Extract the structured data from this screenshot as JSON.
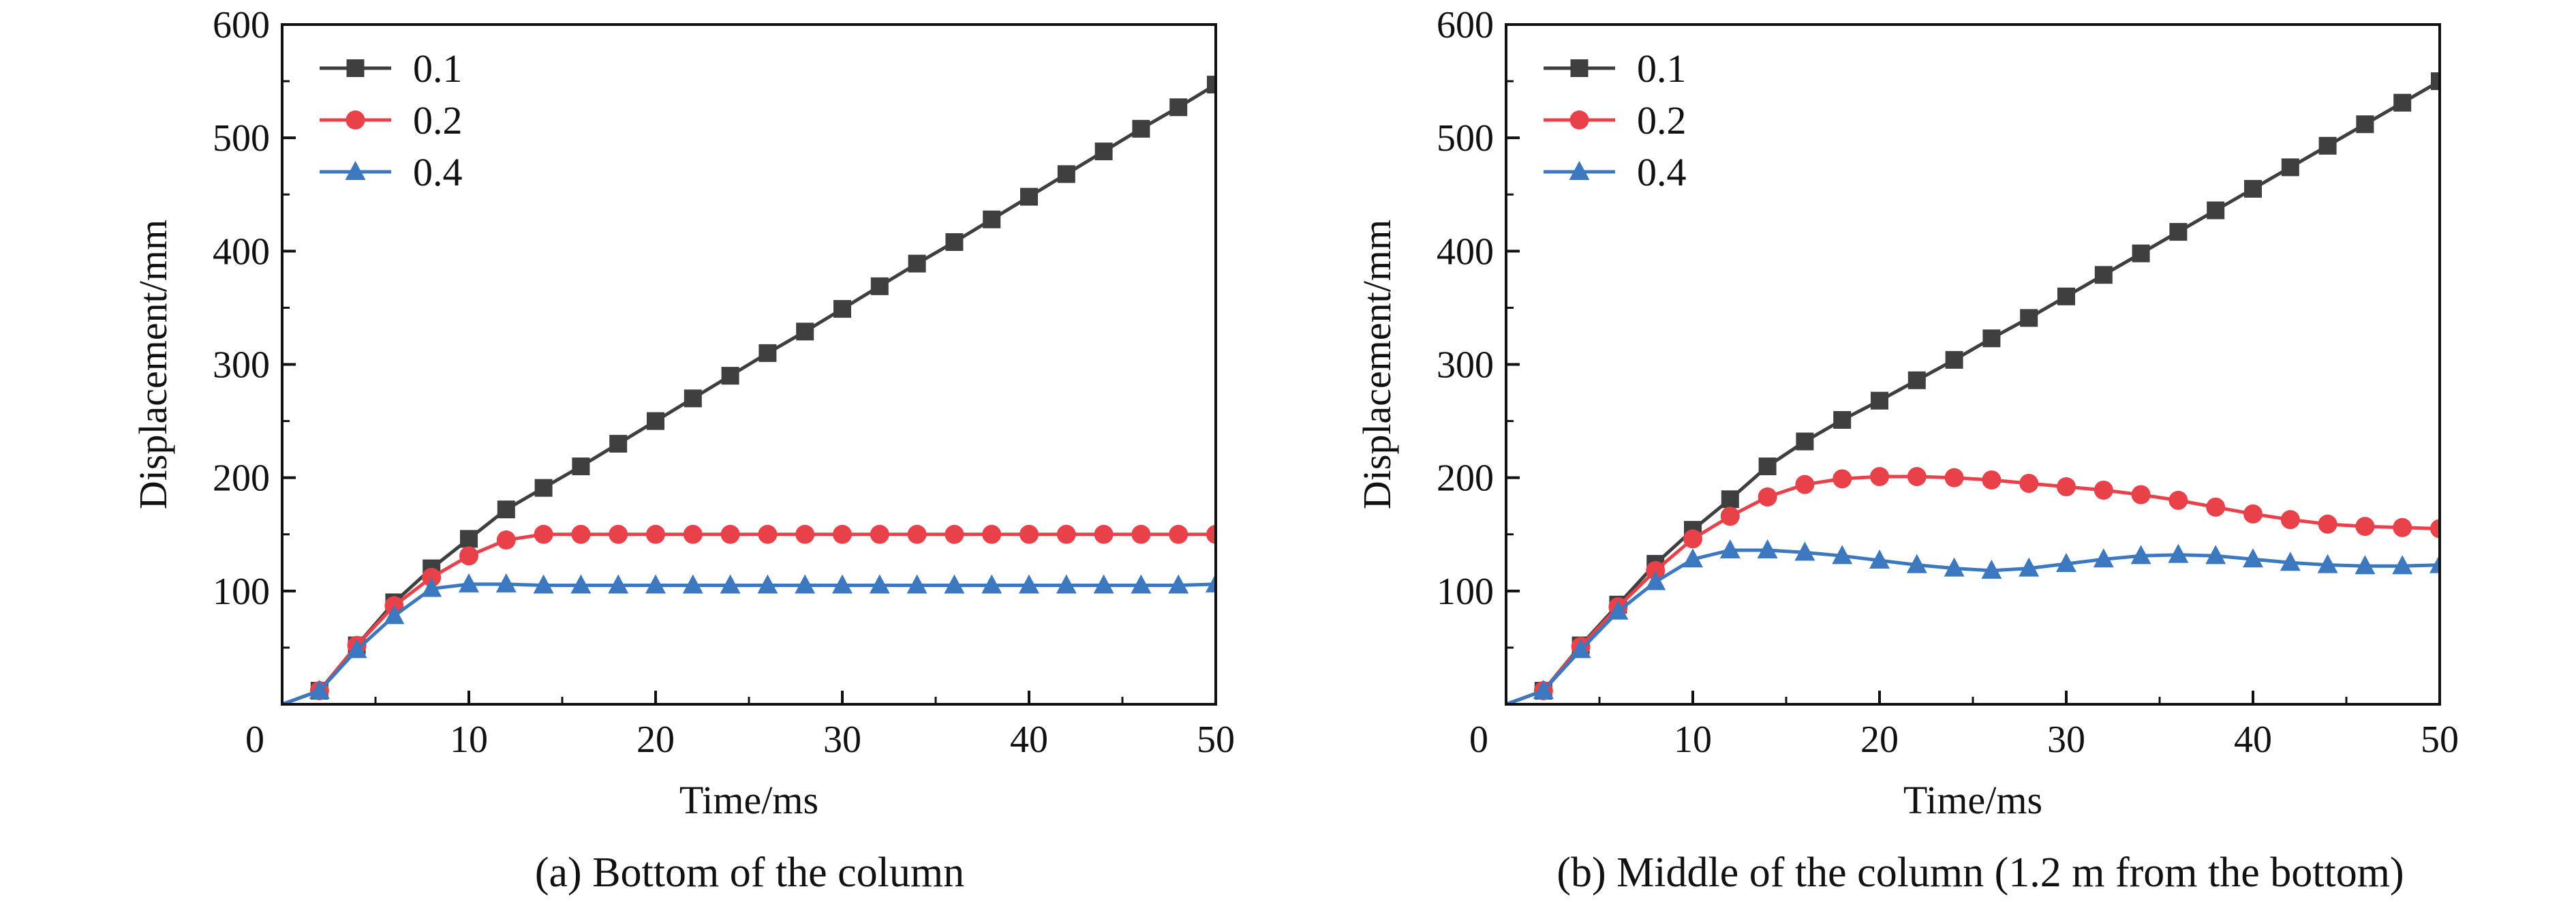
{
  "colors": {
    "series_0_1": "#3f3f3f",
    "series_0_2": "#e8414a",
    "series_0_4": "#3b78c0",
    "axis": "#111111"
  },
  "chart_data": [
    {
      "type": "line",
      "caption": "(a) Bottom of the column",
      "xlabel": "Time/ms",
      "ylabel": "Displacement/mm",
      "xlim": [
        0,
        50
      ],
      "ylim": [
        0,
        600
      ],
      "xticks": [
        0,
        10,
        20,
        30,
        40,
        50
      ],
      "yticks": [
        100,
        200,
        300,
        400,
        500,
        600
      ],
      "grid": false,
      "legend_position": "top-left",
      "x": [
        0,
        2,
        4,
        6,
        8,
        10,
        12,
        14,
        16,
        18,
        20,
        22,
        24,
        26,
        28,
        30,
        32,
        34,
        36,
        38,
        40,
        42,
        44,
        46,
        48,
        50
      ],
      "series": [
        {
          "name": "0.1",
          "marker": "square",
          "color": "#3f3f3f",
          "values": [
            0,
            12,
            52,
            90,
            120,
            146,
            172,
            191,
            210,
            230,
            250,
            270,
            290,
            310,
            329,
            349,
            369,
            389,
            408,
            428,
            448,
            468,
            488,
            508,
            527,
            547
          ]
        },
        {
          "name": "0.2",
          "marker": "circle",
          "color": "#e8414a",
          "values": [
            0,
            12,
            52,
            87,
            112,
            131,
            145,
            150,
            150,
            150,
            150,
            150,
            150,
            150,
            150,
            150,
            150,
            150,
            150,
            150,
            150,
            150,
            150,
            150,
            150,
            150
          ]
        },
        {
          "name": "0.4",
          "marker": "triangle",
          "color": "#3b78c0",
          "values": [
            0,
            12,
            48,
            78,
            102,
            106,
            106,
            105,
            105,
            105,
            105,
            105,
            105,
            105,
            105,
            105,
            105,
            105,
            105,
            105,
            105,
            105,
            105,
            105,
            105,
            106
          ]
        }
      ]
    },
    {
      "type": "line",
      "caption": "(b) Middle of the column (1.2 m from the bottom)",
      "xlabel": "Time/ms",
      "ylabel": "Displacement/mm",
      "xlim": [
        0,
        50
      ],
      "ylim": [
        0,
        600
      ],
      "xticks": [
        0,
        10,
        20,
        30,
        40,
        50
      ],
      "yticks": [
        100,
        200,
        300,
        400,
        500,
        600
      ],
      "grid": false,
      "legend_position": "top-left",
      "x": [
        0,
        2,
        4,
        6,
        8,
        10,
        12,
        14,
        16,
        18,
        20,
        22,
        24,
        26,
        28,
        30,
        32,
        34,
        36,
        38,
        40,
        42,
        44,
        46,
        48,
        50
      ],
      "series": [
        {
          "name": "0.1",
          "marker": "square",
          "color": "#3f3f3f",
          "values": [
            0,
            12,
            52,
            88,
            124,
            154,
            181,
            210,
            232,
            251,
            268,
            286,
            304,
            323,
            341,
            360,
            379,
            398,
            417,
            436,
            455,
            474,
            493,
            512,
            531,
            550
          ]
        },
        {
          "name": "0.2",
          "marker": "circle",
          "color": "#e8414a",
          "values": [
            0,
            12,
            51,
            86,
            118,
            146,
            166,
            183,
            194,
            199,
            201,
            201,
            200,
            198,
            195,
            192,
            189,
            185,
            180,
            174,
            168,
            163,
            159,
            157,
            156,
            155
          ]
        },
        {
          "name": "0.4",
          "marker": "triangle",
          "color": "#3b78c0",
          "values": [
            0,
            12,
            48,
            82,
            108,
            128,
            136,
            136,
            134,
            131,
            127,
            123,
            120,
            118,
            120,
            124,
            128,
            131,
            132,
            131,
            128,
            125,
            123,
            122,
            122,
            123
          ]
        }
      ]
    }
  ]
}
